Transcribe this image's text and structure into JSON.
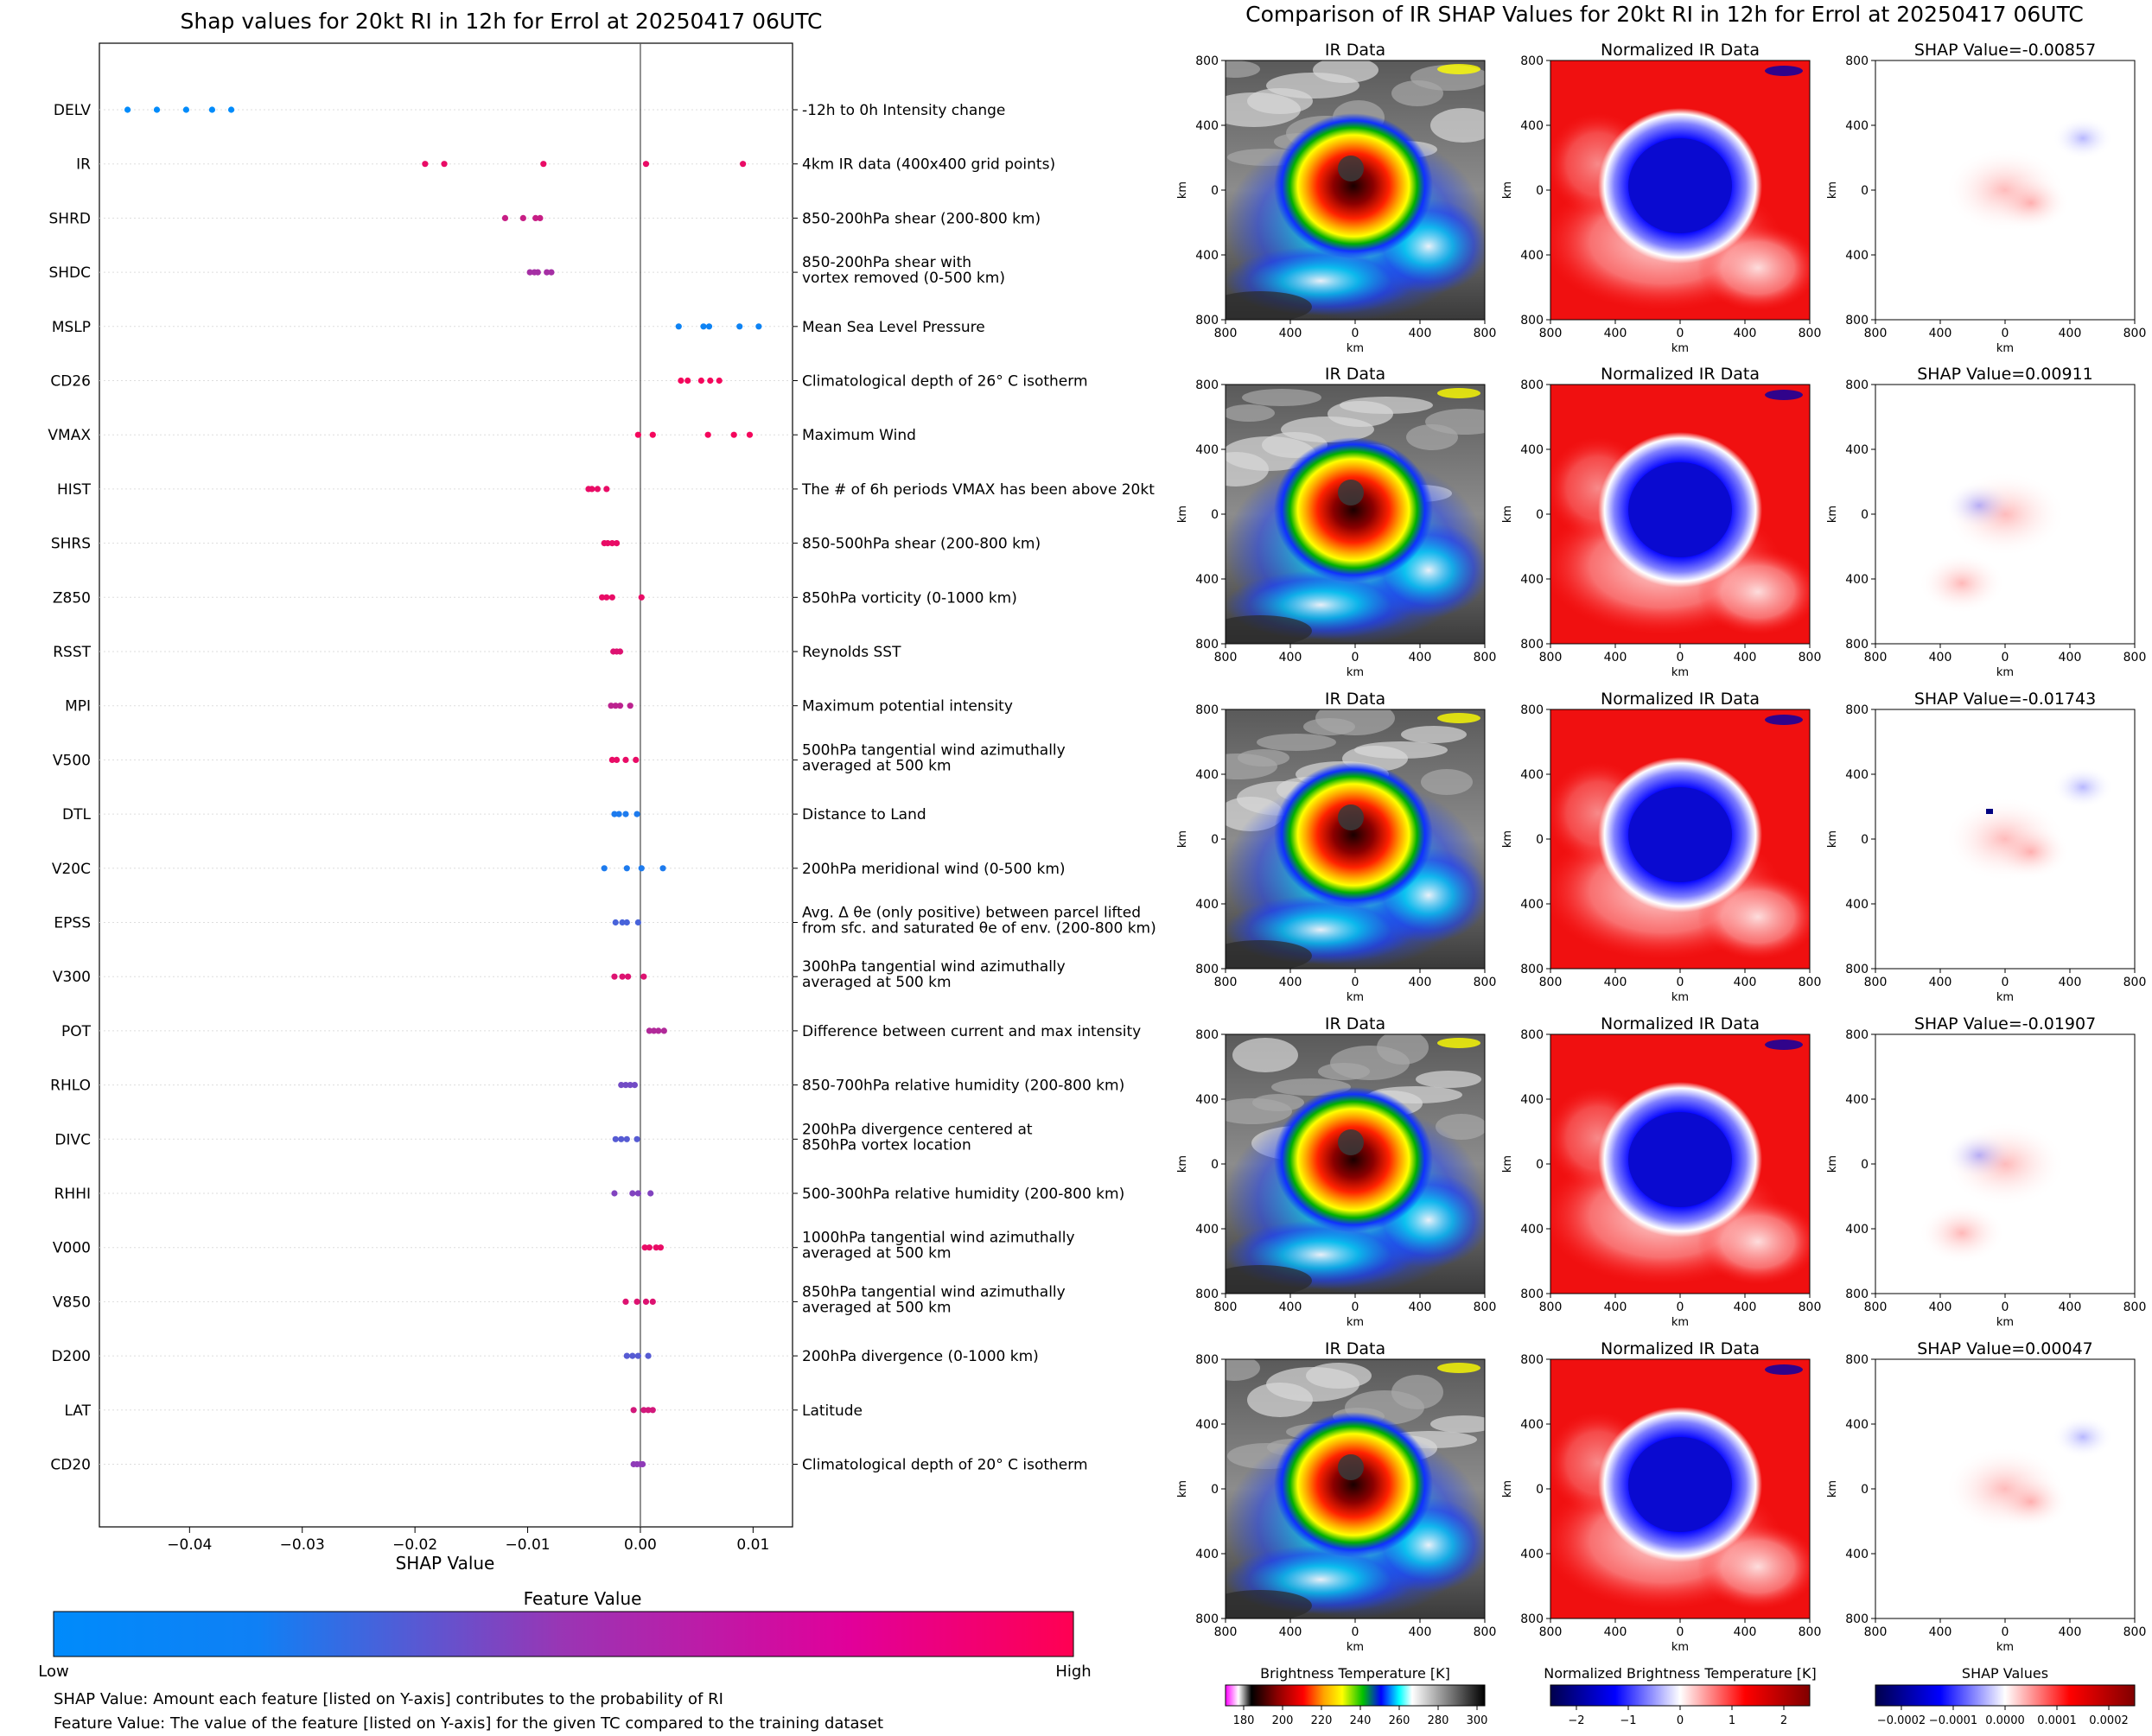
{
  "left_panel": {
    "title": "Shap values for 20kt RI in 12h for Errol at 20250417 06UTC",
    "xlabel": "SHAP Value",
    "colorbar_title": "Feature Value",
    "colorbar_low": "Low",
    "colorbar_high": "High",
    "colors": {
      "low": "#008bfb",
      "mid": "#8f3bb8",
      "high": "#ff0052"
    },
    "footnotes": [
      "SHAP Value: Amount each feature [listed on Y-axis] contributes to the probability of RI",
      "Feature Value: The value of the feature [listed on Y-axis] for the given TC compared to the training dataset"
    ]
  },
  "right_panel": {
    "title": "Comparison of IR SHAP Values for 20kt RI in 12h for Errol at 20250417 06UTC",
    "col_titles": [
      "IR Data",
      "Normalized IR Data"
    ],
    "shap_titles": [
      "SHAP Value=-0.00857",
      "SHAP Value=0.00911",
      "SHAP Value=-0.01743",
      "SHAP Value=-0.01907",
      "SHAP Value=0.00047"
    ],
    "axis_label": "km",
    "x_ticks": [
      "800",
      "400",
      "0",
      "400",
      "800"
    ],
    "y_ticks": [
      "800",
      "400",
      "0",
      "400",
      "800"
    ],
    "colorbars": [
      {
        "label": "Brightness Temperature [K]",
        "ticks": [
          "180",
          "200",
          "220",
          "240",
          "260",
          "280",
          "300"
        ]
      },
      {
        "label": "Normalized Brightness Temperature [K]",
        "ticks": [
          "−2",
          "−1",
          "0",
          "1",
          "2"
        ]
      },
      {
        "label": "SHAP Values",
        "ticks": [
          "−0.0002",
          "−0.0001",
          "0.0000",
          "0.0001",
          "0.0002"
        ]
      }
    ]
  },
  "chart_data": {
    "type": "scatter",
    "title": "Shap values for 20kt RI in 12h for Errol at 20250417 06UTC",
    "xlabel": "SHAP Value",
    "xlim": [
      -0.048,
      0.0135
    ],
    "xticks": [
      -0.04,
      -0.03,
      -0.02,
      -0.01,
      0.0,
      0.01
    ],
    "xtick_labels": [
      "−0.04",
      "−0.03",
      "−0.02",
      "−0.01",
      "0.00",
      "0.01"
    ],
    "features": [
      {
        "name": "DELV",
        "description": "-12h to 0h Intensity change",
        "shap": [
          -0.0455,
          -0.0429,
          -0.0403,
          -0.038,
          -0.0363
        ],
        "feature_value": [
          0.0,
          0.0,
          0.0,
          0.0,
          0.0
        ]
      },
      {
        "name": "IR",
        "description": "4km IR data (400x400 grid points)",
        "shap": [
          -0.0191,
          -0.0174,
          -0.0086,
          0.0005,
          0.0091
        ],
        "feature_value": [
          0.9,
          0.9,
          0.9,
          0.9,
          0.9
        ]
      },
      {
        "name": "SHRD",
        "description": "850-200hPa shear (200-800 km)",
        "shap": [
          -0.012,
          -0.0104,
          -0.0093,
          -0.0089
        ],
        "feature_value": [
          0.75,
          0.75,
          0.75,
          0.75
        ]
      },
      {
        "name": "SHDC",
        "description": "850-200hPa shear with\nvortex removed (0-500 km)",
        "shap": [
          -0.0098,
          -0.0094,
          -0.0091,
          -0.0083,
          -0.0079
        ],
        "feature_value": [
          0.6,
          0.6,
          0.6,
          0.6,
          0.6
        ]
      },
      {
        "name": "MSLP",
        "description": "Mean Sea Level Pressure",
        "shap": [
          0.0034,
          0.0056,
          0.0061,
          0.0088,
          0.0105
        ],
        "feature_value": [
          0.05,
          0.05,
          0.05,
          0.05,
          0.05
        ]
      },
      {
        "name": "CD26",
        "description": "Climatological depth of 26° C isotherm",
        "shap": [
          0.0036,
          0.0042,
          0.0054,
          0.0062,
          0.007
        ],
        "feature_value": [
          0.95,
          0.95,
          0.95,
          0.95,
          0.95
        ]
      },
      {
        "name": "VMAX",
        "description": "Maximum Wind",
        "shap": [
          -0.0002,
          0.0011,
          0.006,
          0.0083,
          0.0097
        ],
        "feature_value": [
          0.95,
          0.95,
          0.95,
          0.95,
          0.95
        ]
      },
      {
        "name": "HIST",
        "description": "The # of 6h periods VMAX has been above 20kt",
        "shap": [
          -0.0046,
          -0.0043,
          -0.0038,
          -0.003
        ],
        "feature_value": [
          0.9,
          0.9,
          0.9,
          0.9
        ]
      },
      {
        "name": "SHRS",
        "description": "850-500hPa shear (200-800 km)",
        "shap": [
          -0.0032,
          -0.0029,
          -0.0025,
          -0.0021
        ],
        "feature_value": [
          0.9,
          0.9,
          0.9,
          0.9
        ]
      },
      {
        "name": "Z850",
        "description": "850hPa vorticity (0-1000 km)",
        "shap": [
          -0.0034,
          -0.003,
          -0.0025,
          0.0001
        ],
        "feature_value": [
          0.9,
          0.9,
          0.9,
          0.9
        ]
      },
      {
        "name": "RSST",
        "description": "Reynolds SST",
        "shap": [
          -0.0024,
          -0.0021,
          -0.0018
        ],
        "feature_value": [
          0.85,
          0.85,
          0.85
        ]
      },
      {
        "name": "MPI",
        "description": "Maximum potential intensity",
        "shap": [
          -0.0026,
          -0.0022,
          -0.0018,
          -0.0009
        ],
        "feature_value": [
          0.7,
          0.7,
          0.7,
          0.7
        ]
      },
      {
        "name": "V500",
        "description": "500hPa tangential wind azimuthally\naveraged at 500 km",
        "shap": [
          -0.0025,
          -0.0021,
          -0.0013,
          -0.0004
        ],
        "feature_value": [
          0.9,
          0.9,
          0.9,
          0.9
        ]
      },
      {
        "name": "DTL",
        "description": "Distance to Land",
        "shap": [
          -0.0023,
          -0.0019,
          -0.0013,
          -0.0003
        ],
        "feature_value": [
          0.1,
          0.1,
          0.1,
          0.1
        ]
      },
      {
        "name": "V20C",
        "description": "200hPa meridional wind (0-500 km)",
        "shap": [
          -0.0032,
          -0.0012,
          0.0001,
          0.002
        ],
        "feature_value": [
          0.1,
          0.1,
          0.1,
          0.1
        ]
      },
      {
        "name": "EPSS",
        "description": "Avg. Δ θe (only positive) between parcel lifted\nfrom sfc. and saturated θe of env. (200-800 km)",
        "shap": [
          -0.0022,
          -0.0016,
          -0.0012,
          -0.0002
        ],
        "feature_value": [
          0.25,
          0.25,
          0.25,
          0.25
        ]
      },
      {
        "name": "V300",
        "description": "300hPa tangential wind azimuthally\naveraged at 500 km",
        "shap": [
          -0.0023,
          -0.0016,
          -0.0011,
          0.0003
        ],
        "feature_value": [
          0.85,
          0.85,
          0.85,
          0.85
        ]
      },
      {
        "name": "POT",
        "description": "Difference between current and max intensity",
        "shap": [
          0.0008,
          0.0012,
          0.0016,
          0.0021
        ],
        "feature_value": [
          0.65,
          0.65,
          0.65,
          0.65
        ]
      },
      {
        "name": "RHLO",
        "description": "850-700hPa relative humidity (200-800 km)",
        "shap": [
          -0.0017,
          -0.0013,
          -0.0009,
          -0.0005
        ],
        "feature_value": [
          0.4,
          0.4,
          0.4,
          0.4
        ]
      },
      {
        "name": "DIVC",
        "description": "200hPa divergence centered at\n850hPa vortex location",
        "shap": [
          -0.0022,
          -0.0017,
          -0.0012,
          -0.0003
        ],
        "feature_value": [
          0.3,
          0.3,
          0.3,
          0.3
        ]
      },
      {
        "name": "RHHI",
        "description": "500-300hPa relative humidity (200-800 km)",
        "shap": [
          -0.0023,
          -0.0007,
          -0.0002,
          0.0009
        ],
        "feature_value": [
          0.45,
          0.45,
          0.45,
          0.45
        ]
      },
      {
        "name": "V000",
        "description": "1000hPa tangential wind azimuthally\naveraged at 500 km",
        "shap": [
          0.0004,
          0.0008,
          0.0014,
          0.0018
        ],
        "feature_value": [
          0.9,
          0.9,
          0.9,
          0.9
        ]
      },
      {
        "name": "V850",
        "description": "850hPa tangential wind azimuthally\naveraged at 500 km",
        "shap": [
          -0.0013,
          -0.0003,
          0.0005,
          0.0011
        ],
        "feature_value": [
          0.85,
          0.85,
          0.85,
          0.85
        ]
      },
      {
        "name": "D200",
        "description": "200hPa divergence (0-1000 km)",
        "shap": [
          -0.0012,
          -0.0007,
          -0.0002,
          0.0007
        ],
        "feature_value": [
          0.3,
          0.3,
          0.3,
          0.3
        ]
      },
      {
        "name": "LAT",
        "description": "Latitude",
        "shap": [
          -0.0006,
          0.0003,
          0.0007,
          0.0011
        ],
        "feature_value": [
          0.8,
          0.8,
          0.8,
          0.8
        ]
      },
      {
        "name": "CD20",
        "description": "Climatological depth of 20° C isotherm",
        "shap": [
          -0.0006,
          -0.0003,
          0.0,
          0.0002
        ],
        "feature_value": [
          0.5,
          0.5,
          0.5,
          0.5
        ]
      }
    ]
  }
}
